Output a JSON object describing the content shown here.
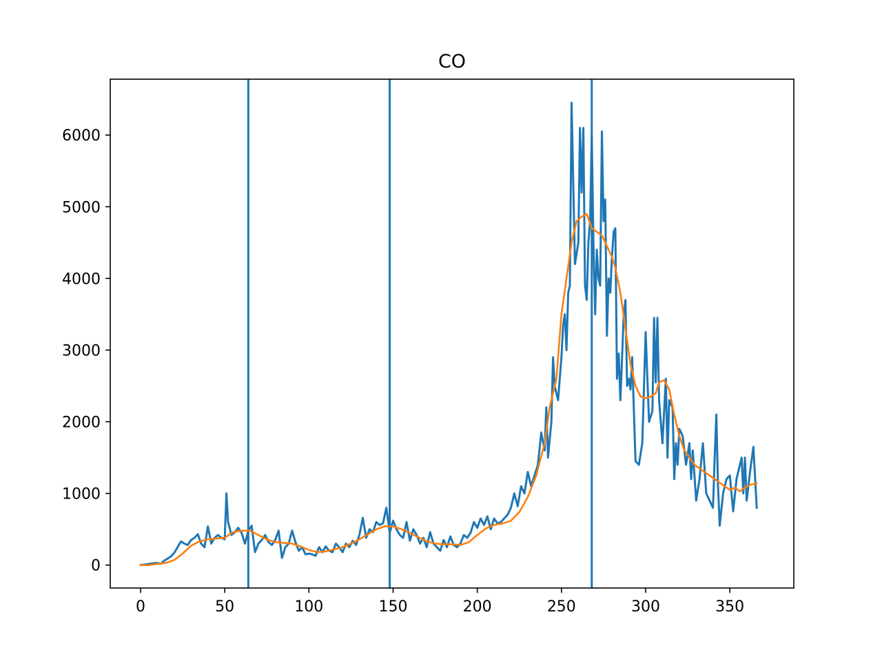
{
  "chart_data": {
    "type": "line",
    "title": "CO",
    "xlabel": "",
    "ylabel": "",
    "xlim": [
      -18,
      388
    ],
    "ylim": [
      -320,
      6780
    ],
    "x_ticks": [
      0,
      50,
      100,
      150,
      200,
      250,
      300,
      350
    ],
    "y_ticks": [
      0,
      1000,
      2000,
      3000,
      4000,
      5000,
      6000
    ],
    "grid": false,
    "legend": "none",
    "vertical_lines": [
      {
        "x": 64,
        "color": "#1f77b4"
      },
      {
        "x": 148,
        "color": "#1f77b4"
      },
      {
        "x": 268,
        "color": "#1f77b4"
      }
    ],
    "series": [
      {
        "color": "#1f77b4",
        "points": [
          [
            0,
            0
          ],
          [
            3,
            10
          ],
          [
            6,
            20
          ],
          [
            9,
            30
          ],
          [
            12,
            20
          ],
          [
            14,
            60
          ],
          [
            16,
            90
          ],
          [
            18,
            120
          ],
          [
            20,
            170
          ],
          [
            22,
            250
          ],
          [
            24,
            330
          ],
          [
            26,
            300
          ],
          [
            28,
            280
          ],
          [
            30,
            350
          ],
          [
            32,
            380
          ],
          [
            34,
            430
          ],
          [
            36,
            300
          ],
          [
            38,
            250
          ],
          [
            40,
            540
          ],
          [
            42,
            300
          ],
          [
            44,
            380
          ],
          [
            46,
            420
          ],
          [
            48,
            380
          ],
          [
            50,
            360
          ],
          [
            51,
            1000
          ],
          [
            52,
            600
          ],
          [
            54,
            420
          ],
          [
            56,
            460
          ],
          [
            58,
            520
          ],
          [
            60,
            450
          ],
          [
            62,
            300
          ],
          [
            64,
            480
          ],
          [
            66,
            550
          ],
          [
            68,
            180
          ],
          [
            70,
            300
          ],
          [
            72,
            350
          ],
          [
            74,
            420
          ],
          [
            76,
            320
          ],
          [
            78,
            280
          ],
          [
            80,
            350
          ],
          [
            82,
            480
          ],
          [
            84,
            100
          ],
          [
            86,
            250
          ],
          [
            88,
            300
          ],
          [
            90,
            480
          ],
          [
            92,
            320
          ],
          [
            94,
            200
          ],
          [
            96,
            250
          ],
          [
            98,
            150
          ],
          [
            100,
            160
          ],
          [
            102,
            150
          ],
          [
            104,
            130
          ],
          [
            106,
            250
          ],
          [
            108,
            180
          ],
          [
            110,
            260
          ],
          [
            112,
            200
          ],
          [
            114,
            180
          ],
          [
            116,
            300
          ],
          [
            118,
            250
          ],
          [
            120,
            180
          ],
          [
            122,
            300
          ],
          [
            124,
            250
          ],
          [
            126,
            340
          ],
          [
            128,
            280
          ],
          [
            130,
            420
          ],
          [
            132,
            660
          ],
          [
            134,
            380
          ],
          [
            136,
            500
          ],
          [
            138,
            460
          ],
          [
            140,
            600
          ],
          [
            142,
            560
          ],
          [
            144,
            580
          ],
          [
            146,
            800
          ],
          [
            148,
            450
          ],
          [
            150,
            620
          ],
          [
            152,
            500
          ],
          [
            154,
            420
          ],
          [
            156,
            380
          ],
          [
            158,
            600
          ],
          [
            160,
            340
          ],
          [
            162,
            500
          ],
          [
            164,
            420
          ],
          [
            166,
            300
          ],
          [
            168,
            380
          ],
          [
            170,
            250
          ],
          [
            172,
            460
          ],
          [
            174,
            300
          ],
          [
            176,
            250
          ],
          [
            178,
            200
          ],
          [
            180,
            350
          ],
          [
            182,
            250
          ],
          [
            184,
            400
          ],
          [
            186,
            280
          ],
          [
            188,
            250
          ],
          [
            190,
            300
          ],
          [
            192,
            420
          ],
          [
            194,
            380
          ],
          [
            196,
            450
          ],
          [
            198,
            600
          ],
          [
            200,
            520
          ],
          [
            202,
            650
          ],
          [
            204,
            560
          ],
          [
            206,
            680
          ],
          [
            208,
            500
          ],
          [
            210,
            650
          ],
          [
            212,
            580
          ],
          [
            214,
            600
          ],
          [
            216,
            650
          ],
          [
            218,
            700
          ],
          [
            220,
            800
          ],
          [
            222,
            1000
          ],
          [
            224,
            820
          ],
          [
            226,
            1100
          ],
          [
            228,
            1000
          ],
          [
            230,
            1300
          ],
          [
            232,
            1100
          ],
          [
            234,
            1250
          ],
          [
            236,
            1400
          ],
          [
            238,
            1850
          ],
          [
            240,
            1600
          ],
          [
            241,
            2200
          ],
          [
            242,
            1500
          ],
          [
            244,
            2000
          ],
          [
            245,
            2900
          ],
          [
            246,
            2500
          ],
          [
            248,
            2300
          ],
          [
            250,
            2900
          ],
          [
            251,
            3350
          ],
          [
            252,
            3500
          ],
          [
            253,
            3000
          ],
          [
            254,
            3800
          ],
          [
            255,
            3900
          ],
          [
            256,
            6450
          ],
          [
            258,
            4200
          ],
          [
            260,
            4500
          ],
          [
            261,
            6100
          ],
          [
            262,
            5200
          ],
          [
            263,
            6100
          ],
          [
            264,
            3900
          ],
          [
            265,
            3700
          ],
          [
            266,
            4500
          ],
          [
            267,
            4800
          ],
          [
            268,
            6000
          ],
          [
            269,
            4500
          ],
          [
            270,
            3500
          ],
          [
            271,
            4400
          ],
          [
            272,
            4000
          ],
          [
            273,
            3900
          ],
          [
            274,
            6050
          ],
          [
            275,
            4800
          ],
          [
            276,
            5100
          ],
          [
            277,
            3200
          ],
          [
            278,
            4000
          ],
          [
            279,
            3800
          ],
          [
            280,
            4300
          ],
          [
            281,
            4650
          ],
          [
            282,
            4700
          ],
          [
            283,
            2600
          ],
          [
            284,
            2950
          ],
          [
            285,
            2300
          ],
          [
            286,
            2900
          ],
          [
            287,
            3500
          ],
          [
            288,
            3700
          ],
          [
            289,
            2500
          ],
          [
            290,
            2600
          ],
          [
            291,
            2450
          ],
          [
            292,
            2900
          ],
          [
            294,
            1450
          ],
          [
            296,
            1400
          ],
          [
            298,
            1700
          ],
          [
            300,
            3250
          ],
          [
            302,
            2000
          ],
          [
            304,
            2150
          ],
          [
            305,
            3450
          ],
          [
            306,
            2550
          ],
          [
            307,
            3450
          ],
          [
            308,
            2300
          ],
          [
            310,
            1700
          ],
          [
            312,
            2600
          ],
          [
            313,
            1500
          ],
          [
            314,
            2300
          ],
          [
            316,
            2200
          ],
          [
            317,
            1200
          ],
          [
            318,
            1700
          ],
          [
            319,
            1400
          ],
          [
            320,
            1900
          ],
          [
            322,
            1800
          ],
          [
            324,
            1400
          ],
          [
            326,
            1700
          ],
          [
            327,
            1200
          ],
          [
            328,
            1600
          ],
          [
            330,
            900
          ],
          [
            332,
            1200
          ],
          [
            334,
            1700
          ],
          [
            336,
            1000
          ],
          [
            338,
            900
          ],
          [
            340,
            800
          ],
          [
            341,
            1500
          ],
          [
            342,
            2100
          ],
          [
            343,
            1100
          ],
          [
            344,
            550
          ],
          [
            346,
            1000
          ],
          [
            348,
            1200
          ],
          [
            350,
            1250
          ],
          [
            352,
            750
          ],
          [
            354,
            1200
          ],
          [
            356,
            1400
          ],
          [
            357,
            1500
          ],
          [
            358,
            1000
          ],
          [
            359,
            1500
          ],
          [
            360,
            900
          ],
          [
            362,
            1300
          ],
          [
            364,
            1650
          ],
          [
            366,
            800
          ]
        ]
      },
      {
        "color": "#ff7f0e",
        "points": [
          [
            0,
            0
          ],
          [
            5,
            0
          ],
          [
            10,
            15
          ],
          [
            15,
            30
          ],
          [
            20,
            70
          ],
          [
            25,
            160
          ],
          [
            30,
            270
          ],
          [
            35,
            330
          ],
          [
            40,
            360
          ],
          [
            45,
            370
          ],
          [
            50,
            380
          ],
          [
            55,
            460
          ],
          [
            60,
            480
          ],
          [
            65,
            480
          ],
          [
            70,
            420
          ],
          [
            75,
            360
          ],
          [
            80,
            320
          ],
          [
            85,
            310
          ],
          [
            90,
            300
          ],
          [
            95,
            260
          ],
          [
            100,
            210
          ],
          [
            105,
            180
          ],
          [
            110,
            190
          ],
          [
            115,
            220
          ],
          [
            120,
            250
          ],
          [
            125,
            300
          ],
          [
            130,
            360
          ],
          [
            135,
            430
          ],
          [
            140,
            500
          ],
          [
            145,
            540
          ],
          [
            150,
            540
          ],
          [
            155,
            500
          ],
          [
            160,
            450
          ],
          [
            165,
            390
          ],
          [
            170,
            330
          ],
          [
            175,
            300
          ],
          [
            180,
            290
          ],
          [
            185,
            290
          ],
          [
            190,
            280
          ],
          [
            195,
            320
          ],
          [
            200,
            420
          ],
          [
            205,
            510
          ],
          [
            210,
            560
          ],
          [
            215,
            580
          ],
          [
            220,
            620
          ],
          [
            225,
            740
          ],
          [
            230,
            950
          ],
          [
            235,
            1250
          ],
          [
            240,
            1700
          ],
          [
            243,
            2200
          ],
          [
            247,
            2600
          ],
          [
            250,
            3500
          ],
          [
            253,
            4000
          ],
          [
            256,
            4500
          ],
          [
            259,
            4800
          ],
          [
            262,
            4860
          ],
          [
            265,
            4900
          ],
          [
            268,
            4700
          ],
          [
            271,
            4650
          ],
          [
            274,
            4600
          ],
          [
            277,
            4450
          ],
          [
            280,
            4300
          ],
          [
            282,
            4150
          ],
          [
            285,
            3800
          ],
          [
            288,
            3300
          ],
          [
            291,
            2800
          ],
          [
            294,
            2500
          ],
          [
            297,
            2350
          ],
          [
            300,
            2330
          ],
          [
            303,
            2350
          ],
          [
            306,
            2400
          ],
          [
            308,
            2550
          ],
          [
            311,
            2580
          ],
          [
            314,
            2450
          ],
          [
            317,
            2100
          ],
          [
            320,
            1800
          ],
          [
            323,
            1600
          ],
          [
            326,
            1500
          ],
          [
            329,
            1400
          ],
          [
            332,
            1350
          ],
          [
            335,
            1300
          ],
          [
            338,
            1250
          ],
          [
            341,
            1200
          ],
          [
            344,
            1150
          ],
          [
            347,
            1100
          ],
          [
            350,
            1050
          ],
          [
            353,
            1080
          ],
          [
            356,
            1030
          ],
          [
            359,
            1080
          ],
          [
            362,
            1120
          ],
          [
            366,
            1140
          ]
        ]
      }
    ]
  }
}
